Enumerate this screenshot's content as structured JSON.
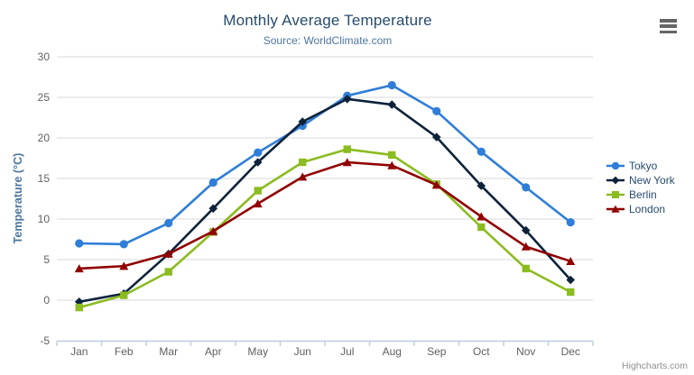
{
  "header": {
    "title": "Monthly Average Temperature",
    "subtitle": "Source: WorldClimate.com"
  },
  "credits": {
    "label": "Highcharts.com"
  },
  "context_menu_icon": "hamburger-icon",
  "colors": {
    "title": "#274b6d",
    "subtitle": "#4d759e",
    "axis_title": "#4d759e",
    "tick_label": "#606060",
    "grid_line": "#d8d8d8",
    "axis_line": "#c0d0e0",
    "legend_text": "#274b6d",
    "credits_text": "#909090",
    "menu_icon": "#666666",
    "background": "#ffffff"
  },
  "chart_data": {
    "type": "line",
    "title": "Monthly Average Temperature",
    "subtitle": "Source: WorldClimate.com",
    "xlabel": "",
    "ylabel": "Temperature (°C)",
    "categories": [
      "Jan",
      "Feb",
      "Mar",
      "Apr",
      "May",
      "Jun",
      "Jul",
      "Aug",
      "Sep",
      "Oct",
      "Nov",
      "Dec"
    ],
    "yticks": [
      -5,
      0,
      5,
      10,
      15,
      20,
      25,
      30
    ],
    "ylim": [
      -5,
      30
    ],
    "grid": "horizontal",
    "legend_position": "right",
    "series": [
      {
        "name": "Tokyo",
        "color": "#2f7ed8",
        "marker": "circle",
        "values": [
          7.0,
          6.9,
          9.5,
          14.5,
          18.2,
          21.5,
          25.2,
          26.5,
          23.3,
          18.3,
          13.9,
          9.6
        ]
      },
      {
        "name": "New York",
        "color": "#0d233a",
        "marker": "diamond",
        "values": [
          -0.2,
          0.8,
          5.7,
          11.3,
          17.0,
          22.0,
          24.8,
          24.1,
          20.1,
          14.1,
          8.6,
          2.5
        ]
      },
      {
        "name": "Berlin",
        "color": "#8bbc21",
        "marker": "square",
        "values": [
          -0.9,
          0.6,
          3.5,
          8.4,
          13.5,
          17.0,
          18.6,
          17.9,
          14.3,
          9.0,
          3.9,
          1.0
        ]
      },
      {
        "name": "London",
        "color": "#910000",
        "marker": "triangle",
        "values": [
          3.9,
          4.2,
          5.7,
          8.5,
          11.9,
          15.2,
          17.0,
          16.6,
          14.2,
          10.3,
          6.6,
          4.8
        ]
      }
    ]
  }
}
